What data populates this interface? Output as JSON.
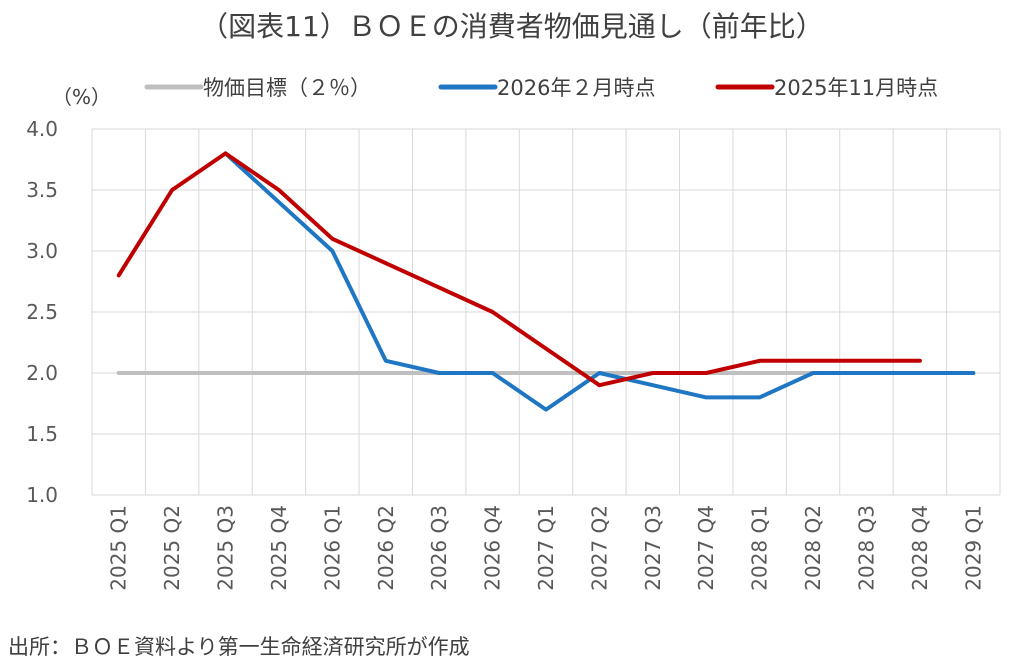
{
  "chart_data": {
    "type": "line",
    "title": "（図表11）ＢＯＥの消費者物価見通し（前年比）",
    "ylabel": "（%）",
    "ylim": [
      1.0,
      4.0
    ],
    "yticks": [
      "4.0",
      "3.5",
      "3.0",
      "2.5",
      "2.0",
      "1.5",
      "1.0"
    ],
    "grid": true,
    "legend_position": "top",
    "categories": [
      "2025 Q1",
      "2025 Q2",
      "2025 Q3",
      "2025 Q4",
      "2026 Q1",
      "2026 Q2",
      "2026 Q3",
      "2026 Q4",
      "2027 Q1",
      "2027 Q2",
      "2027 Q3",
      "2027 Q4",
      "2028 Q1",
      "2028 Q2",
      "2028 Q3",
      "2028 Q4",
      "2029 Q1"
    ],
    "series": [
      {
        "name": "物価目標（２％）",
        "color": "#bfbfbf",
        "values": [
          2.0,
          2.0,
          2.0,
          2.0,
          2.0,
          2.0,
          2.0,
          2.0,
          2.0,
          2.0,
          2.0,
          2.0,
          2.0,
          2.0,
          2.0,
          2.0,
          2.0
        ]
      },
      {
        "name": "2026年２月時点",
        "color": "#1f77c4",
        "values": [
          null,
          null,
          3.8,
          3.4,
          3.0,
          2.1,
          2.0,
          2.0,
          1.7,
          2.0,
          1.9,
          1.8,
          1.8,
          2.0,
          2.0,
          2.0,
          2.0
        ]
      },
      {
        "name": "2025年11月時点",
        "color": "#c00000",
        "values": [
          2.8,
          3.5,
          3.8,
          3.5,
          3.1,
          2.9,
          2.7,
          2.5,
          2.2,
          1.9,
          2.0,
          2.0,
          2.1,
          2.1,
          2.1,
          2.1,
          null
        ]
      }
    ]
  },
  "source": "出所：ＢＯＥ資料より第一生命経済研究所が作成"
}
